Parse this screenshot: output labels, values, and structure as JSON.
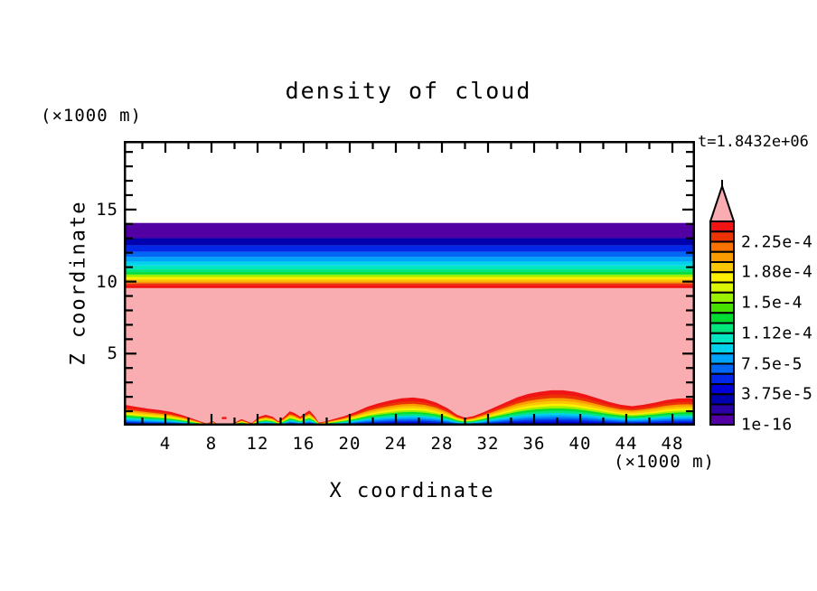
{
  "page": {
    "background": "#ffffff",
    "text_color": "#000000"
  },
  "header": {
    "title": "density of cloud",
    "time_label": "t=1.8432e+06"
  },
  "axes": {
    "x": {
      "label": "X coordinate",
      "unit": "(×1000 m)",
      "range": [
        0,
        50
      ],
      "major_ticks": [
        4,
        8,
        12,
        16,
        20,
        24,
        28,
        32,
        36,
        40,
        44,
        48
      ],
      "minor_tick_step": 2
    },
    "z": {
      "label": "Z coordinate",
      "unit": "(×1000 m)",
      "range": [
        0,
        19.8
      ],
      "major_ticks": [
        5,
        10,
        15
      ],
      "minor_tick_step": 1
    }
  },
  "colorbar": {
    "cells": 20,
    "over_color": "#F9ADB0",
    "tick_labels": [
      "2.25e-4",
      "1.88e-4",
      "1.5e-4",
      "1.12e-4",
      "7.5e-5",
      "3.75e-5",
      "1e-16"
    ],
    "tick_values": [
      0.000225,
      0.0001875,
      0.00015,
      0.0001125,
      7.5e-05,
      3.75e-05,
      1e-16
    ],
    "palette": [
      "#5200A3",
      "#2D00A5",
      "#0000AF",
      "#0000D7",
      "#0028E6",
      "#0066F5",
      "#00A3FA",
      "#00D2EB",
      "#00E6C3",
      "#00E67D",
      "#00DC32",
      "#46E100",
      "#9BF000",
      "#DCF500",
      "#FAF000",
      "#FAC800",
      "#FA9B00",
      "#FA7300",
      "#EB3205",
      "#F01414"
    ]
  },
  "chart_data": {
    "type": "heatmap",
    "subtype": "filled_contour_2d",
    "title": "density of cloud",
    "xlabel": "X coordinate (×1000 m)",
    "ylabel": "Z coordinate (×1000 m)",
    "time_annotation": "t=1.8432e+06",
    "xlim": [
      0,
      50
    ],
    "zlim": [
      0,
      19.8
    ],
    "contour_levels_labeled": [
      1e-16,
      3.75e-05,
      7.5e-05,
      0.0001125,
      0.00015,
      0.0001875,
      0.000225
    ],
    "interior_over_color": "#F9ADB0",
    "cloud_top_transition": {
      "z_boundaries": [
        9.55,
        9.76,
        9.89,
        10.01,
        10.16,
        10.32,
        10.49,
        10.66,
        10.85,
        11.12,
        11.39,
        11.71,
        12.06,
        12.52,
        13.02,
        14.07
      ],
      "palette_indices": [
        20,
        19,
        17,
        16,
        15,
        13,
        11,
        10,
        9,
        8,
        7,
        6,
        5,
        3,
        1
      ]
    },
    "cloud_base_bands": {
      "fracs": [
        1.0,
        0.875,
        0.78,
        0.7,
        0.62,
        0.55,
        0.485,
        0.42,
        0.355,
        0.295,
        0.235,
        0.175,
        0.115,
        0.055
      ],
      "palette_indices": [
        20,
        19,
        17,
        16,
        15,
        13,
        11,
        10,
        8,
        7,
        6,
        5,
        4,
        3
      ]
    },
    "cloud_base_boundary_points": [
      [
        0.4,
        1.45
      ],
      [
        1.5,
        1.3
      ],
      [
        2.5,
        1.18
      ],
      [
        3.5,
        1.08
      ],
      [
        4.5,
        0.95
      ],
      [
        5.5,
        0.72
      ],
      [
        6.3,
        0.5
      ],
      [
        7.0,
        0.3
      ],
      [
        7.6,
        0.14
      ],
      [
        8.1,
        0.32
      ],
      [
        8.45,
        0.14
      ],
      [
        9.0,
        0.14
      ],
      [
        9.7,
        0.06
      ],
      [
        10.2,
        0.28
      ],
      [
        10.6,
        0.45
      ],
      [
        11.0,
        0.32
      ],
      [
        11.5,
        0.18
      ],
      [
        12.1,
        0.6
      ],
      [
        12.7,
        0.75
      ],
      [
        13.3,
        0.62
      ],
      [
        13.8,
        0.3
      ],
      [
        14.3,
        0.6
      ],
      [
        14.8,
        1.0
      ],
      [
        15.2,
        0.88
      ],
      [
        15.7,
        0.62
      ],
      [
        16.1,
        0.85
      ],
      [
        16.5,
        1.05
      ],
      [
        16.9,
        0.7
      ],
      [
        17.3,
        0.22
      ],
      [
        17.9,
        0.3
      ],
      [
        18.6,
        0.45
      ],
      [
        19.5,
        0.65
      ],
      [
        20.5,
        0.95
      ],
      [
        21.5,
        1.3
      ],
      [
        22.5,
        1.55
      ],
      [
        23.5,
        1.75
      ],
      [
        24.5,
        1.9
      ],
      [
        25.5,
        1.95
      ],
      [
        26.5,
        1.85
      ],
      [
        27.5,
        1.6
      ],
      [
        28.5,
        1.2
      ],
      [
        29.3,
        0.75
      ],
      [
        30.0,
        0.55
      ],
      [
        30.7,
        0.65
      ],
      [
        31.5,
        0.9
      ],
      [
        32.5,
        1.25
      ],
      [
        33.5,
        1.6
      ],
      [
        34.5,
        1.95
      ],
      [
        35.5,
        2.2
      ],
      [
        36.5,
        2.35
      ],
      [
        37.5,
        2.45
      ],
      [
        38.5,
        2.45
      ],
      [
        39.5,
        2.35
      ],
      [
        40.5,
        2.15
      ],
      [
        41.5,
        1.9
      ],
      [
        42.5,
        1.65
      ],
      [
        43.5,
        1.45
      ],
      [
        44.5,
        1.35
      ],
      [
        45.5,
        1.45
      ],
      [
        46.5,
        1.6
      ],
      [
        47.5,
        1.78
      ],
      [
        48.5,
        1.88
      ],
      [
        49.3,
        1.9
      ],
      [
        50.0,
        1.87
      ]
    ],
    "red_speck": {
      "x": [
        8.9,
        9.3
      ],
      "z": [
        0.45,
        0.6
      ]
    }
  }
}
